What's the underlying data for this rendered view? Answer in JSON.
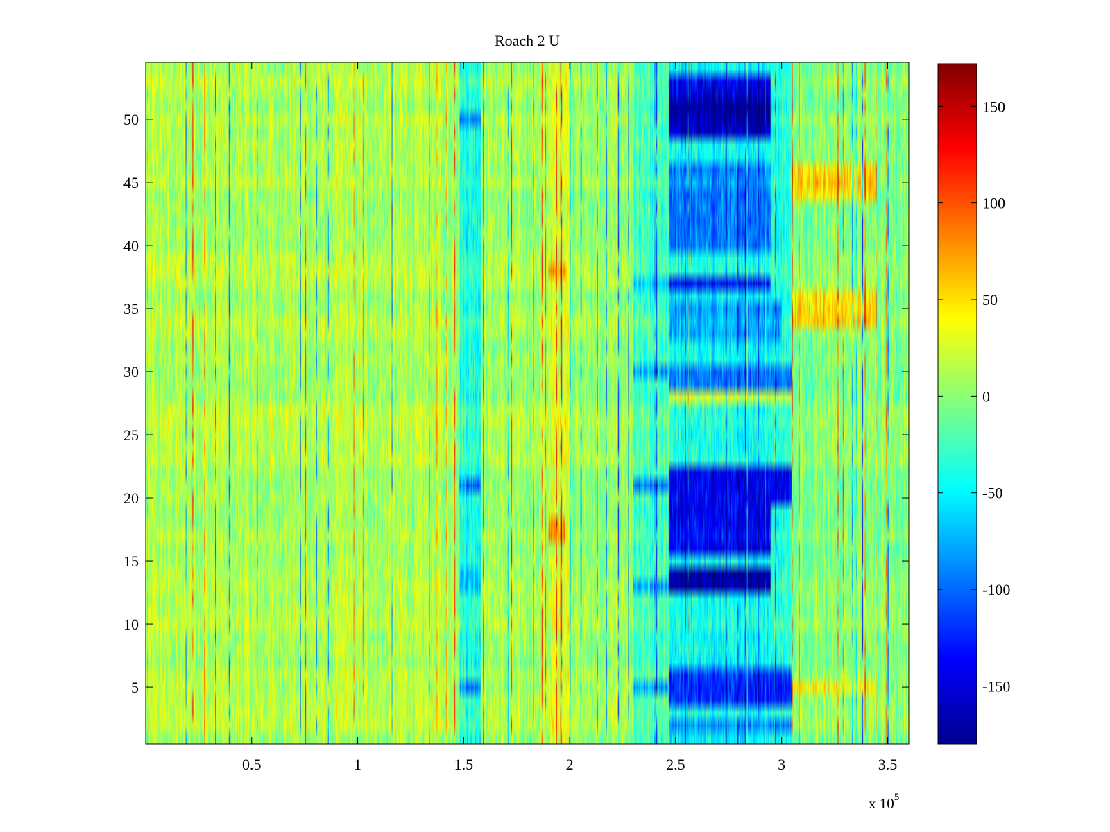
{
  "chart_data": {
    "type": "heatmap",
    "title": "Roach 2 U",
    "xlabel": "",
    "ylabel": "",
    "xlim": [
      0,
      360000
    ],
    "ylim": [
      0.5,
      54.5
    ],
    "rows": 54,
    "x_ticks": [
      {
        "value": 50000,
        "label": "0.5"
      },
      {
        "value": 100000,
        "label": "1"
      },
      {
        "value": 150000,
        "label": "1.5"
      },
      {
        "value": 200000,
        "label": "2"
      },
      {
        "value": 250000,
        "label": "2.5"
      },
      {
        "value": 300000,
        "label": "3"
      },
      {
        "value": 350000,
        "label": "3.5"
      }
    ],
    "x_multiplier_label": "x 10",
    "x_multiplier_exponent": "5",
    "y_ticks": [
      {
        "value": 5,
        "label": "5"
      },
      {
        "value": 10,
        "label": "10"
      },
      {
        "value": 15,
        "label": "15"
      },
      {
        "value": 20,
        "label": "20"
      },
      {
        "value": 25,
        "label": "25"
      },
      {
        "value": 30,
        "label": "30"
      },
      {
        "value": 35,
        "label": "35"
      },
      {
        "value": 40,
        "label": "40"
      },
      {
        "value": 45,
        "label": "45"
      },
      {
        "value": 50,
        "label": "50"
      }
    ],
    "colorbar": {
      "colormap": "jet",
      "clim": [
        -180,
        172
      ],
      "ticks": [
        {
          "value": 150,
          "label": "150"
        },
        {
          "value": 100,
          "label": "100"
        },
        {
          "value": 50,
          "label": "50"
        },
        {
          "value": 0,
          "label": "0"
        },
        {
          "value": -50,
          "label": "-50"
        },
        {
          "value": -100,
          "label": "-100"
        },
        {
          "value": -150,
          "label": "-150"
        }
      ]
    },
    "base_value_mean": 10,
    "column_bands": [
      {
        "x0": 0,
        "x1": 148000,
        "value": 12
      },
      {
        "x0": 148000,
        "x1": 158000,
        "value": -35
      },
      {
        "x0": 158000,
        "x1": 190000,
        "value": 8
      },
      {
        "x0": 190000,
        "x1": 200000,
        "value": 30
      },
      {
        "x0": 200000,
        "x1": 230000,
        "value": 5
      },
      {
        "x0": 230000,
        "x1": 247000,
        "value": -25
      },
      {
        "x0": 247000,
        "x1": 295000,
        "value": -45
      },
      {
        "x0": 295000,
        "x1": 305000,
        "value": -30
      },
      {
        "x0": 305000,
        "x1": 360000,
        "value": 0
      }
    ],
    "regions": [
      {
        "x0": 247000,
        "x1": 295000,
        "y0": 48.5,
        "y1": 53.5,
        "value": -150
      },
      {
        "x0": 247000,
        "x1": 295000,
        "y0": 49.5,
        "y1": 51.5,
        "value": -170
      },
      {
        "x0": 247000,
        "x1": 295000,
        "y0": 39.5,
        "y1": 46.5,
        "value": -90
      },
      {
        "x0": 247000,
        "x1": 295000,
        "y0": 36.5,
        "y1": 37.5,
        "value": -140
      },
      {
        "x0": 247000,
        "x1": 300000,
        "y0": 32.5,
        "y1": 35.5,
        "value": -80
      },
      {
        "x0": 247000,
        "x1": 305000,
        "y0": 28.5,
        "y1": 30.5,
        "value": -90
      },
      {
        "x0": 247000,
        "x1": 305000,
        "y0": 19.5,
        "y1": 22.5,
        "value": -135
      },
      {
        "x0": 247000,
        "x1": 295000,
        "y0": 15.5,
        "y1": 19.5,
        "value": -135
      },
      {
        "x0": 247000,
        "x1": 295000,
        "y0": 12.5,
        "y1": 14.5,
        "value": -170
      },
      {
        "x0": 247000,
        "x1": 305000,
        "y0": 3.5,
        "y1": 6.5,
        "value": -125
      },
      {
        "x0": 247000,
        "x1": 305000,
        "y0": 1.5,
        "y1": 2.5,
        "value": -95
      },
      {
        "x0": 305000,
        "x1": 345000,
        "y0": 43.5,
        "y1": 46.5,
        "value": 55
      },
      {
        "x0": 305000,
        "x1": 345000,
        "y0": 33.5,
        "y1": 36.5,
        "value": 55
      },
      {
        "x0": 305000,
        "x1": 345000,
        "y0": 4.5,
        "y1": 5.5,
        "value": 40
      },
      {
        "x0": 148000,
        "x1": 158000,
        "y0": 49.5,
        "y1": 50.5,
        "value": -90
      },
      {
        "x0": 148000,
        "x1": 158000,
        "y0": 20.5,
        "y1": 21.5,
        "value": -90
      },
      {
        "x0": 148000,
        "x1": 158000,
        "y0": 12.5,
        "y1": 14.5,
        "value": -70
      },
      {
        "x0": 148000,
        "x1": 158000,
        "y0": 4.5,
        "y1": 5.5,
        "value": -90
      },
      {
        "x0": 190000,
        "x1": 198000,
        "y0": 16.5,
        "y1": 18.5,
        "value": 85
      },
      {
        "x0": 190000,
        "x1": 198000,
        "y0": 37.5,
        "y1": 38.5,
        "value": 70
      },
      {
        "x0": 230000,
        "x1": 247000,
        "y0": 20.5,
        "y1": 21.5,
        "value": -90
      },
      {
        "x0": 230000,
        "x1": 247000,
        "y0": 4.5,
        "y1": 5.5,
        "value": -80
      },
      {
        "x0": 230000,
        "x1": 247000,
        "y0": 29.5,
        "y1": 30.5,
        "value": -75
      },
      {
        "x0": 230000,
        "x1": 247000,
        "y0": 36.5,
        "y1": 37.5,
        "value": -70
      },
      {
        "x0": 230000,
        "x1": 247000,
        "y0": 12.5,
        "y1": 13.5,
        "value": -85
      },
      {
        "x0": 247000,
        "x1": 305000,
        "y0": 27.5,
        "y1": 28.5,
        "value": 30
      },
      {
        "x0": 305000,
        "x1": 360000,
        "y0": 27.5,
        "y1": 28.5,
        "value": 0
      }
    ]
  }
}
